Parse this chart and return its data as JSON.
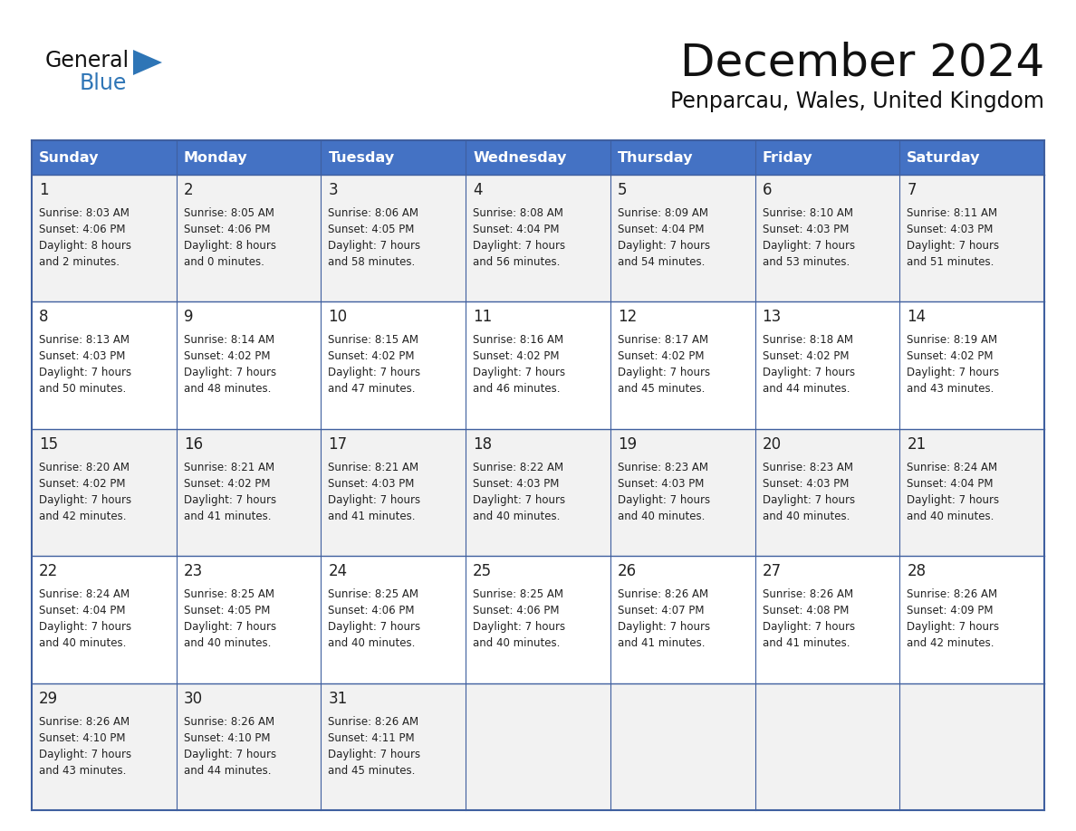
{
  "title": "December 2024",
  "subtitle": "Penparcau, Wales, United Kingdom",
  "header_bg": "#4472C4",
  "header_text": "#FFFFFF",
  "day_headers": [
    "Sunday",
    "Monday",
    "Tuesday",
    "Wednesday",
    "Thursday",
    "Friday",
    "Saturday"
  ],
  "row_bg_odd": "#F2F2F2",
  "row_bg_even": "#FFFFFF",
  "border_color": "#3F5F9F",
  "text_color": "#222222",
  "days": [
    {
      "day": 1,
      "col": 0,
      "row": 0,
      "sunrise": "8:03 AM",
      "sunset": "4:06 PM",
      "daylight_h": "8 hours",
      "daylight_m": "and 2 minutes."
    },
    {
      "day": 2,
      "col": 1,
      "row": 0,
      "sunrise": "8:05 AM",
      "sunset": "4:06 PM",
      "daylight_h": "8 hours",
      "daylight_m": "and 0 minutes."
    },
    {
      "day": 3,
      "col": 2,
      "row": 0,
      "sunrise": "8:06 AM",
      "sunset": "4:05 PM",
      "daylight_h": "7 hours",
      "daylight_m": "and 58 minutes."
    },
    {
      "day": 4,
      "col": 3,
      "row": 0,
      "sunrise": "8:08 AM",
      "sunset": "4:04 PM",
      "daylight_h": "7 hours",
      "daylight_m": "and 56 minutes."
    },
    {
      "day": 5,
      "col": 4,
      "row": 0,
      "sunrise": "8:09 AM",
      "sunset": "4:04 PM",
      "daylight_h": "7 hours",
      "daylight_m": "and 54 minutes."
    },
    {
      "day": 6,
      "col": 5,
      "row": 0,
      "sunrise": "8:10 AM",
      "sunset": "4:03 PM",
      "daylight_h": "7 hours",
      "daylight_m": "and 53 minutes."
    },
    {
      "day": 7,
      "col": 6,
      "row": 0,
      "sunrise": "8:11 AM",
      "sunset": "4:03 PM",
      "daylight_h": "7 hours",
      "daylight_m": "and 51 minutes."
    },
    {
      "day": 8,
      "col": 0,
      "row": 1,
      "sunrise": "8:13 AM",
      "sunset": "4:03 PM",
      "daylight_h": "7 hours",
      "daylight_m": "and 50 minutes."
    },
    {
      "day": 9,
      "col": 1,
      "row": 1,
      "sunrise": "8:14 AM",
      "sunset": "4:02 PM",
      "daylight_h": "7 hours",
      "daylight_m": "and 48 minutes."
    },
    {
      "day": 10,
      "col": 2,
      "row": 1,
      "sunrise": "8:15 AM",
      "sunset": "4:02 PM",
      "daylight_h": "7 hours",
      "daylight_m": "and 47 minutes."
    },
    {
      "day": 11,
      "col": 3,
      "row": 1,
      "sunrise": "8:16 AM",
      "sunset": "4:02 PM",
      "daylight_h": "7 hours",
      "daylight_m": "and 46 minutes."
    },
    {
      "day": 12,
      "col": 4,
      "row": 1,
      "sunrise": "8:17 AM",
      "sunset": "4:02 PM",
      "daylight_h": "7 hours",
      "daylight_m": "and 45 minutes."
    },
    {
      "day": 13,
      "col": 5,
      "row": 1,
      "sunrise": "8:18 AM",
      "sunset": "4:02 PM",
      "daylight_h": "7 hours",
      "daylight_m": "and 44 minutes."
    },
    {
      "day": 14,
      "col": 6,
      "row": 1,
      "sunrise": "8:19 AM",
      "sunset": "4:02 PM",
      "daylight_h": "7 hours",
      "daylight_m": "and 43 minutes."
    },
    {
      "day": 15,
      "col": 0,
      "row": 2,
      "sunrise": "8:20 AM",
      "sunset": "4:02 PM",
      "daylight_h": "7 hours",
      "daylight_m": "and 42 minutes."
    },
    {
      "day": 16,
      "col": 1,
      "row": 2,
      "sunrise": "8:21 AM",
      "sunset": "4:02 PM",
      "daylight_h": "7 hours",
      "daylight_m": "and 41 minutes."
    },
    {
      "day": 17,
      "col": 2,
      "row": 2,
      "sunrise": "8:21 AM",
      "sunset": "4:03 PM",
      "daylight_h": "7 hours",
      "daylight_m": "and 41 minutes."
    },
    {
      "day": 18,
      "col": 3,
      "row": 2,
      "sunrise": "8:22 AM",
      "sunset": "4:03 PM",
      "daylight_h": "7 hours",
      "daylight_m": "and 40 minutes."
    },
    {
      "day": 19,
      "col": 4,
      "row": 2,
      "sunrise": "8:23 AM",
      "sunset": "4:03 PM",
      "daylight_h": "7 hours",
      "daylight_m": "and 40 minutes."
    },
    {
      "day": 20,
      "col": 5,
      "row": 2,
      "sunrise": "8:23 AM",
      "sunset": "4:03 PM",
      "daylight_h": "7 hours",
      "daylight_m": "and 40 minutes."
    },
    {
      "day": 21,
      "col": 6,
      "row": 2,
      "sunrise": "8:24 AM",
      "sunset": "4:04 PM",
      "daylight_h": "7 hours",
      "daylight_m": "and 40 minutes."
    },
    {
      "day": 22,
      "col": 0,
      "row": 3,
      "sunrise": "8:24 AM",
      "sunset": "4:04 PM",
      "daylight_h": "7 hours",
      "daylight_m": "and 40 minutes."
    },
    {
      "day": 23,
      "col": 1,
      "row": 3,
      "sunrise": "8:25 AM",
      "sunset": "4:05 PM",
      "daylight_h": "7 hours",
      "daylight_m": "and 40 minutes."
    },
    {
      "day": 24,
      "col": 2,
      "row": 3,
      "sunrise": "8:25 AM",
      "sunset": "4:06 PM",
      "daylight_h": "7 hours",
      "daylight_m": "and 40 minutes."
    },
    {
      "day": 25,
      "col": 3,
      "row": 3,
      "sunrise": "8:25 AM",
      "sunset": "4:06 PM",
      "daylight_h": "7 hours",
      "daylight_m": "and 40 minutes."
    },
    {
      "day": 26,
      "col": 4,
      "row": 3,
      "sunrise": "8:26 AM",
      "sunset": "4:07 PM",
      "daylight_h": "7 hours",
      "daylight_m": "and 41 minutes."
    },
    {
      "day": 27,
      "col": 5,
      "row": 3,
      "sunrise": "8:26 AM",
      "sunset": "4:08 PM",
      "daylight_h": "7 hours",
      "daylight_m": "and 41 minutes."
    },
    {
      "day": 28,
      "col": 6,
      "row": 3,
      "sunrise": "8:26 AM",
      "sunset": "4:09 PM",
      "daylight_h": "7 hours",
      "daylight_m": "and 42 minutes."
    },
    {
      "day": 29,
      "col": 0,
      "row": 4,
      "sunrise": "8:26 AM",
      "sunset": "4:10 PM",
      "daylight_h": "7 hours",
      "daylight_m": "and 43 minutes."
    },
    {
      "day": 30,
      "col": 1,
      "row": 4,
      "sunrise": "8:26 AM",
      "sunset": "4:10 PM",
      "daylight_h": "7 hours",
      "daylight_m": "and 44 minutes."
    },
    {
      "day": 31,
      "col": 2,
      "row": 4,
      "sunrise": "8:26 AM",
      "sunset": "4:11 PM",
      "daylight_h": "7 hours",
      "daylight_m": "and 45 minutes."
    }
  ]
}
